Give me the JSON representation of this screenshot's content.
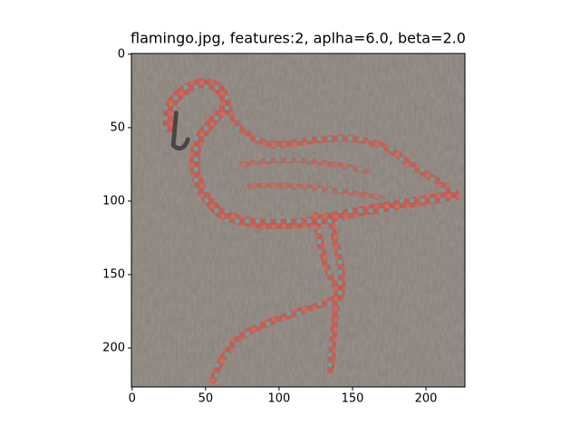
{
  "chart_data": {
    "type": "image",
    "title": "flamingo.jpg, features:2, aplha=6.0, beta=2.0",
    "xlim": [
      -0.5,
      226.5
    ],
    "ylim": [
      226.5,
      -0.5
    ],
    "xticks": [
      0,
      50,
      100,
      150,
      200
    ],
    "yticks": [
      0,
      50,
      100,
      150,
      200
    ]
  }
}
